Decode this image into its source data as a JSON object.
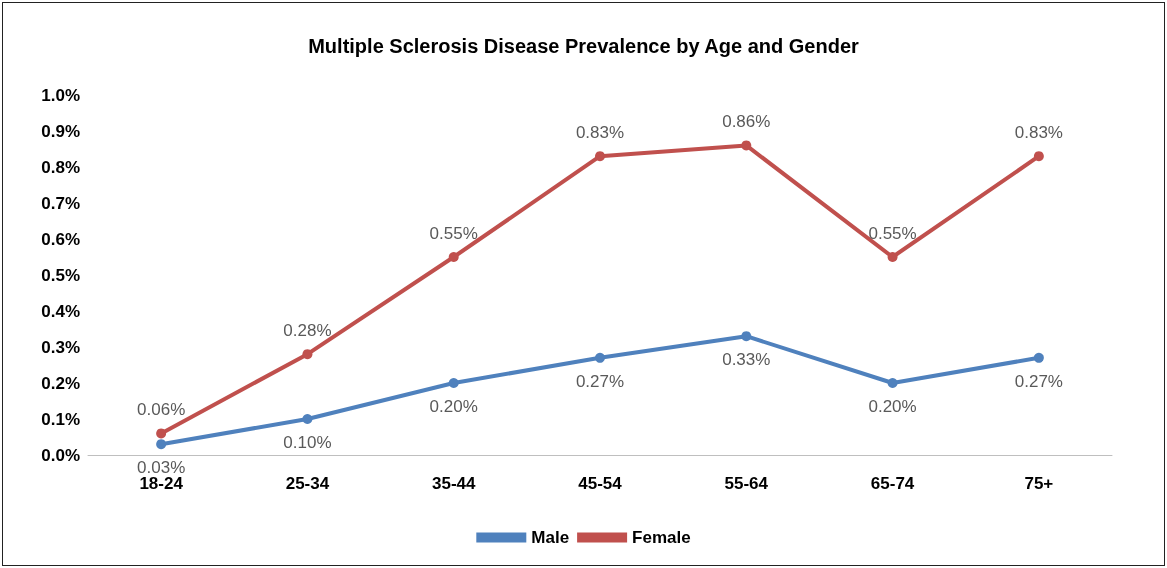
{
  "chart_data": {
    "type": "line",
    "title": "Multiple Sclerosis Disease Prevalence by Age and Gender",
    "categories": [
      "18-24",
      "25-34",
      "35-44",
      "45-54",
      "55-64",
      "65-74",
      "75+"
    ],
    "series": [
      {
        "name": "Male",
        "color": "#4f81bd",
        "values": [
          0.03,
          0.1,
          0.2,
          0.27,
          0.33,
          0.2,
          0.27
        ],
        "value_labels": [
          "0.03%",
          "0.10%",
          "0.20%",
          "0.27%",
          "0.33%",
          "0.20%",
          "0.27%"
        ]
      },
      {
        "name": "Female",
        "color": "#c0504d",
        "values": [
          0.06,
          0.28,
          0.55,
          0.83,
          0.86,
          0.55,
          0.83
        ],
        "value_labels": [
          "0.06%",
          "0.28%",
          "0.55%",
          "0.83%",
          "0.86%",
          "0.55%",
          "0.83%"
        ]
      }
    ],
    "ylim": [
      0,
      1.0
    ],
    "yticks": [
      {
        "value": 0,
        "label": "0.0%"
      },
      {
        "value": 0.1,
        "label": "0.1%"
      },
      {
        "value": 0.2,
        "label": "0.2%"
      },
      {
        "value": 0.3,
        "label": "0.3%"
      },
      {
        "value": 0.4,
        "label": "0.4%"
      },
      {
        "value": 0.5,
        "label": "0.5%"
      },
      {
        "value": 0.6,
        "label": "0.6%"
      },
      {
        "value": 0.7,
        "label": "0.7%"
      },
      {
        "value": 0.8,
        "label": "0.8%"
      },
      {
        "value": 0.9,
        "label": "0.9%"
      },
      {
        "value": 1.0,
        "label": "1.0%"
      }
    ],
    "grid": false,
    "legend": "bottom",
    "marker": "circle",
    "line_style": "solid"
  }
}
